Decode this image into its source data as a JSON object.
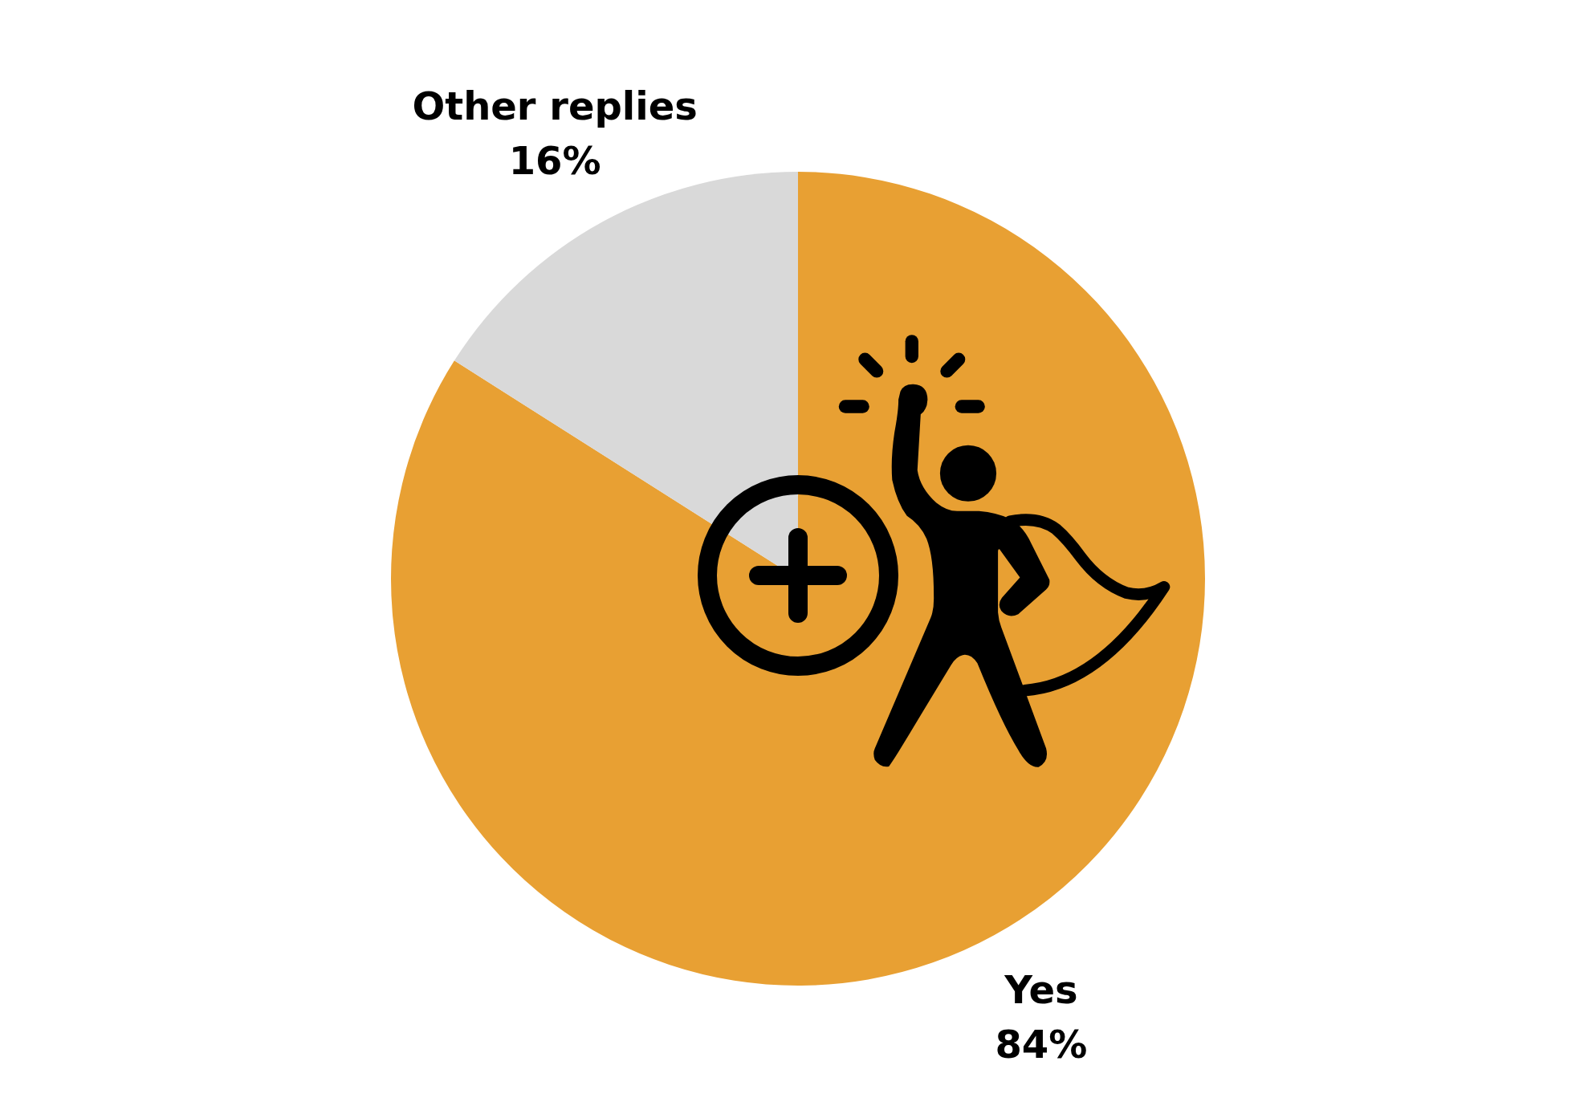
{
  "chart_data": {
    "type": "pie",
    "categories": [
      "Yes",
      "Other replies"
    ],
    "values": [
      84,
      16
    ],
    "colors": [
      "#e8a033",
      "#d9d9d9"
    ],
    "value_labels": [
      "84%",
      "16%"
    ]
  }
}
